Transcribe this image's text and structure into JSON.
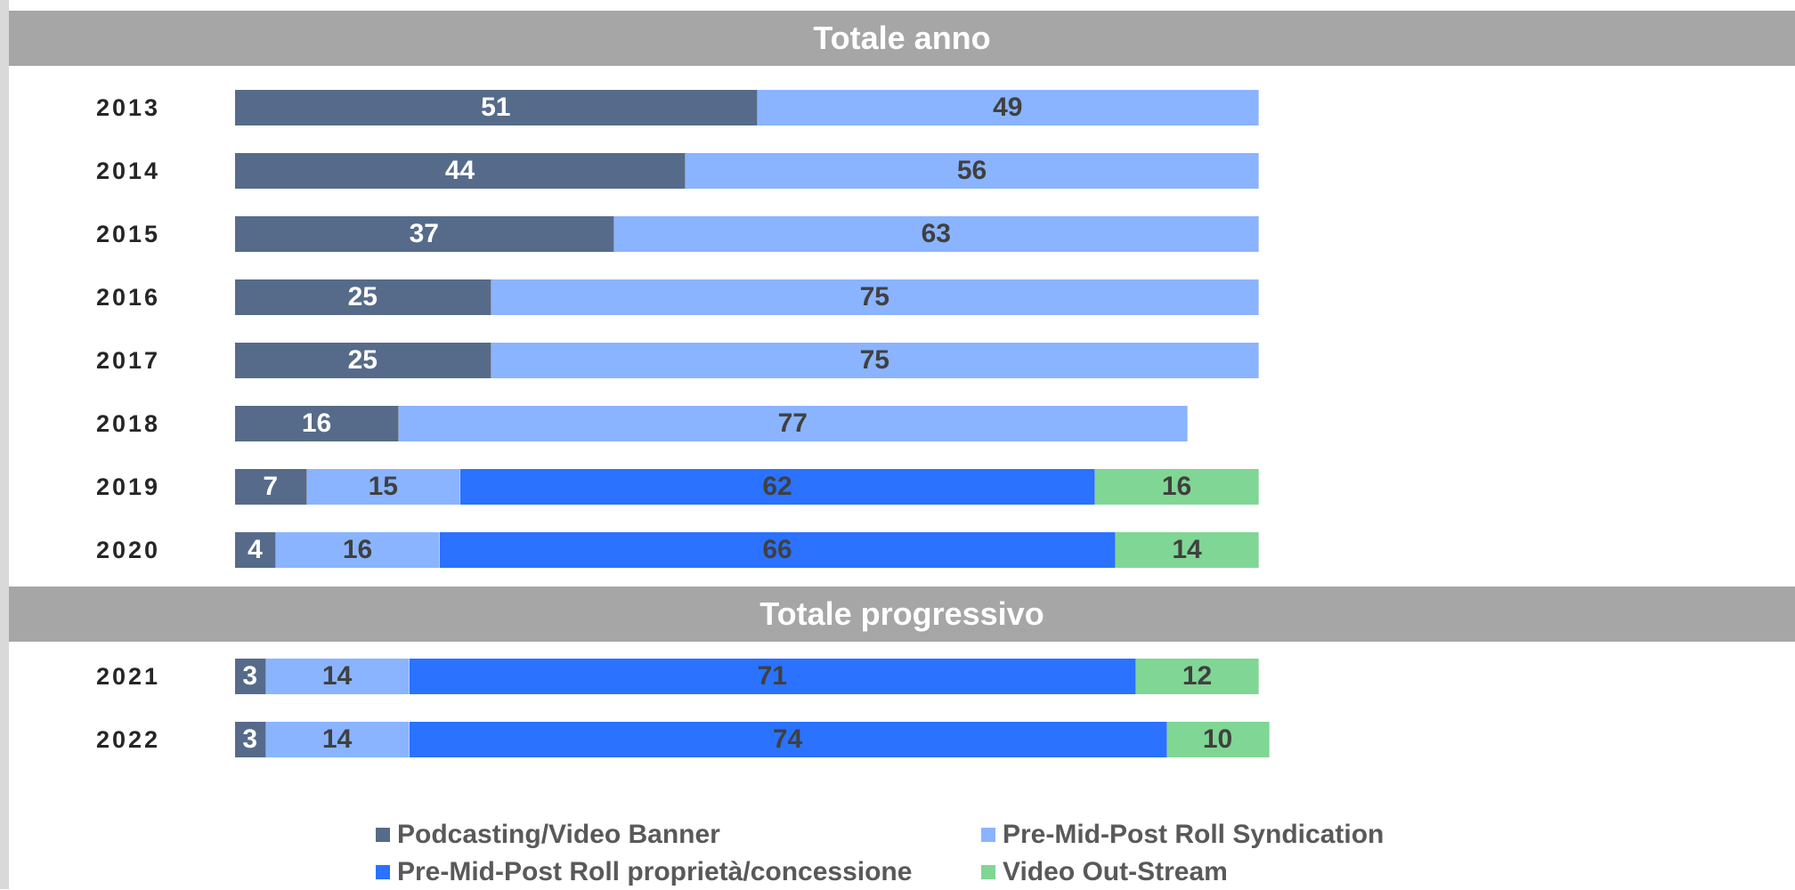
{
  "chart_data": {
    "type": "bar",
    "orientation": "horizontal",
    "stacked": true,
    "sections": [
      {
        "title": "Totale anno",
        "years": [
          "2013",
          "2014",
          "2015",
          "2016",
          "2017",
          "2018",
          "2019",
          "2020"
        ]
      },
      {
        "title": "Totale progressivo",
        "years": [
          "2021",
          "2022"
        ]
      }
    ],
    "categories": [
      "2013",
      "2014",
      "2015",
      "2016",
      "2017",
      "2018",
      "2019",
      "2020",
      "2021",
      "2022"
    ],
    "series": [
      {
        "name": "Podcasting/Video Banner",
        "color": "#566b8a",
        "label_color": "#ffffff",
        "values": [
          51,
          44,
          37,
          25,
          25,
          16,
          7,
          4,
          3,
          3
        ]
      },
      {
        "name": "Pre-Mid-Post Roll Syndication",
        "color": "#8ab4ff",
        "label_color": "#404040",
        "values": [
          49,
          56,
          63,
          75,
          75,
          77,
          15,
          16,
          14,
          14
        ]
      },
      {
        "name": "Pre-Mid-Post Roll proprietà/concessione",
        "color": "#2a72ff",
        "label_color": "#404040",
        "values": [
          0,
          0,
          0,
          0,
          0,
          0,
          62,
          66,
          71,
          74
        ]
      },
      {
        "name": "Video Out-Stream",
        "color": "#80d694",
        "label_color": "#404040",
        "values": [
          0,
          0,
          0,
          0,
          0,
          0,
          16,
          14,
          12,
          10
        ]
      }
    ],
    "xlim": [
      0,
      100
    ],
    "legend": "bottom",
    "grid": false
  }
}
